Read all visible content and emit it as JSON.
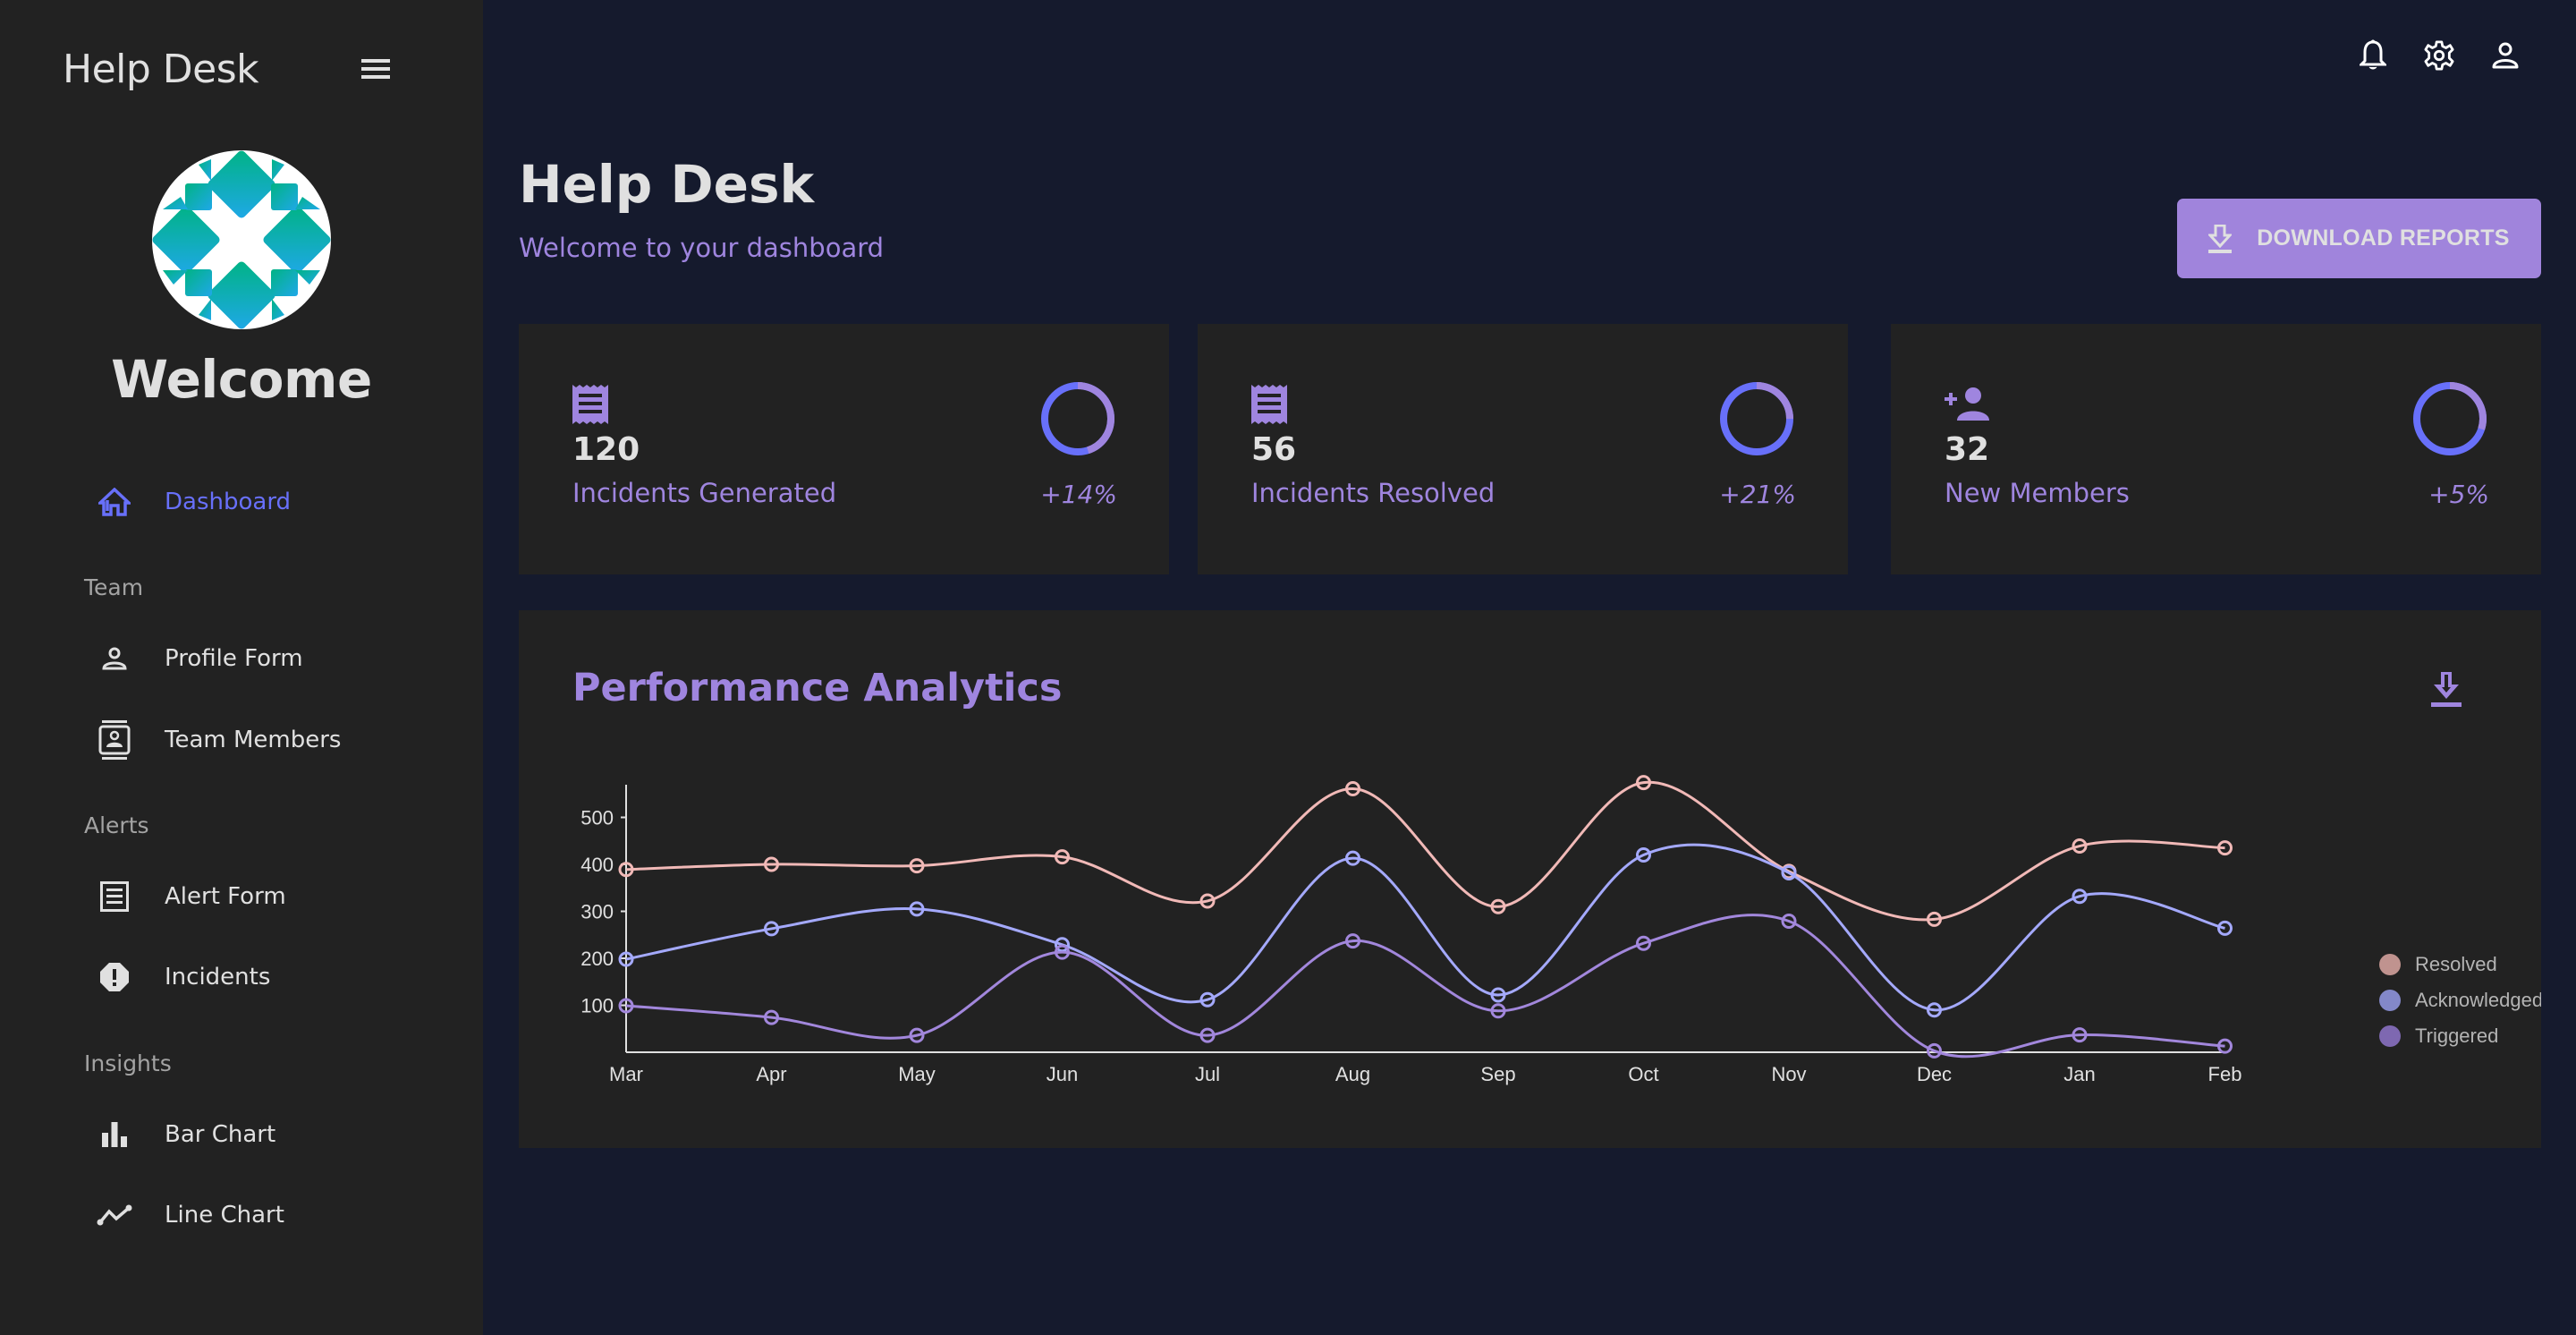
{
  "sidebar": {
    "brand": "Help Desk",
    "welcome": "Welcome",
    "items": [
      {
        "label": "Dashboard",
        "icon": "home-icon",
        "active": true
      },
      {
        "section": "Team"
      },
      {
        "label": "Profile Form",
        "icon": "person-outline-icon"
      },
      {
        "label": "Team Members",
        "icon": "contacts-icon"
      },
      {
        "section": "Alerts"
      },
      {
        "label": "Alert Form",
        "icon": "receipt-icon"
      },
      {
        "label": "Incidents",
        "icon": "report-icon"
      },
      {
        "section": "Insights"
      },
      {
        "label": "Bar Chart",
        "icon": "bar-chart-icon"
      },
      {
        "label": "Line Chart",
        "icon": "timeline-icon"
      }
    ]
  },
  "topbar": {
    "icons": [
      "bell-icon",
      "gear-icon",
      "person-icon"
    ]
  },
  "header": {
    "title": "Help Desk",
    "subtitle": "Welcome to your dashboard",
    "download_label": "DOWNLOAD REPORTS"
  },
  "stats": [
    {
      "value": "120",
      "title": "Incidents Generated",
      "increase": "+14%",
      "progress": 0.45,
      "icon": "receipt-icon"
    },
    {
      "value": "56",
      "title": "Incidents Resolved",
      "increase": "+21%",
      "progress": 0.25,
      "icon": "receipt-icon"
    },
    {
      "value": "32",
      "title": "New Members",
      "increase": "+5%",
      "progress": 0.3,
      "icon": "person-add-icon"
    }
  ],
  "colors": {
    "accent": "#9f85df",
    "active": "#6870fa",
    "button": "#a084dc",
    "panel": "#222222",
    "background": "#151a2d"
  },
  "chart_panel": {
    "title": "Performance Analytics"
  },
  "chart_data": {
    "type": "line",
    "title": "Performance Analytics",
    "xlabel": "",
    "ylabel": "",
    "categories": [
      "Mar",
      "Apr",
      "May",
      "Jun",
      "Jul",
      "Aug",
      "Sep",
      "Oct",
      "Nov",
      "Dec",
      "Jan",
      "Feb"
    ],
    "yticks": [
      100,
      200,
      300,
      400,
      500
    ],
    "ylim": [
      0,
      560
    ],
    "grid": false,
    "legend_position": "right",
    "series": [
      {
        "name": "Resolved",
        "color": "#f1b9b7",
        "legend_color": "#c0938f",
        "values": [
          389,
          400,
          397,
          416,
          322,
          561,
          310,
          574,
          385,
          283,
          439,
          435
        ]
      },
      {
        "name": "Acknowledged",
        "color": "#a4a9fc",
        "legend_color": "#8388c9",
        "values": [
          198,
          263,
          305,
          229,
          112,
          413,
          122,
          420,
          382,
          90,
          332,
          264
        ]
      },
      {
        "name": "Triggered",
        "color": "#a287dc",
        "legend_color": "#7e68b1",
        "values": [
          99,
          74,
          36,
          213,
          36,
          237,
          88,
          232,
          279,
          3,
          37,
          13
        ]
      }
    ]
  }
}
